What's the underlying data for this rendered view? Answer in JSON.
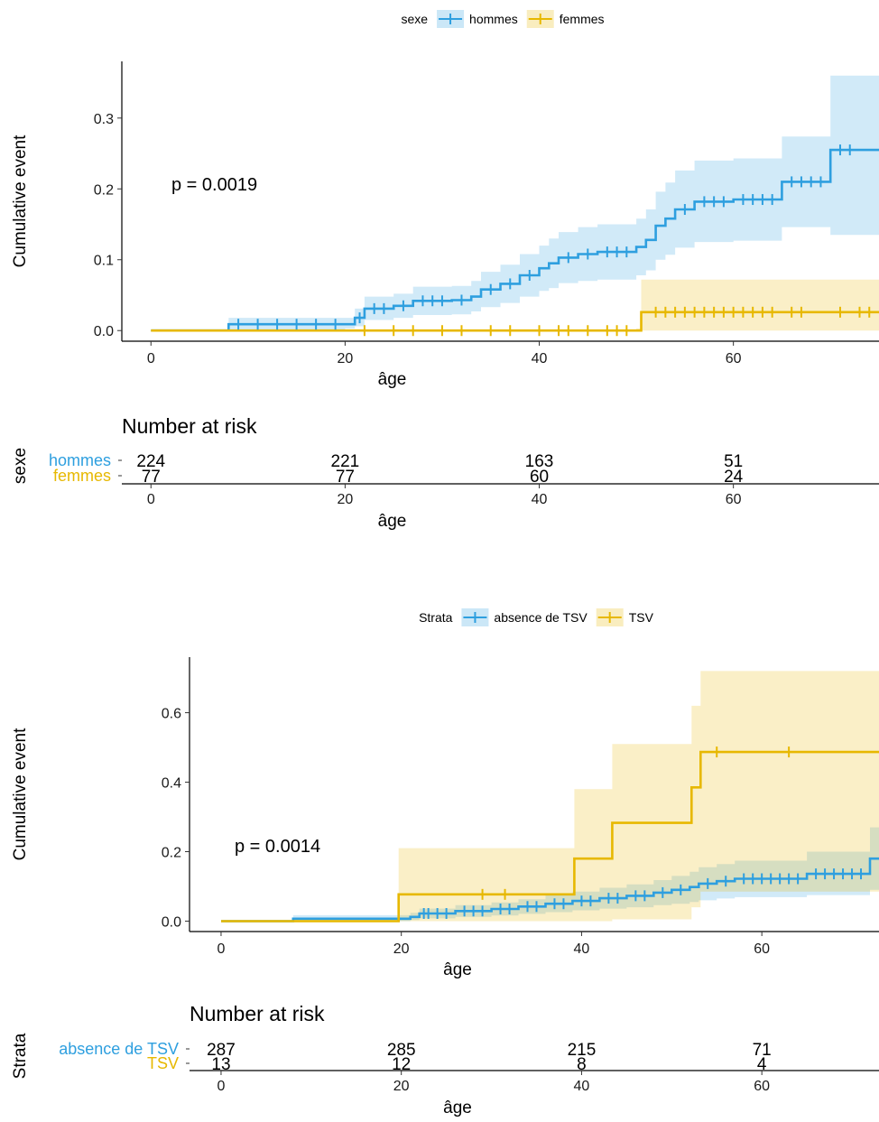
{
  "chart_data": [
    {
      "type": "line",
      "subtype": "cumulative-incidence step plot with confidence bands and censor marks",
      "legend": {
        "title": "sexe",
        "position": "top"
      },
      "xlabel": "âge",
      "ylabel": "Cumulative event",
      "xlim": [
        -3,
        75
      ],
      "ylim": [
        -0.015,
        0.38
      ],
      "x_ticks": [
        0,
        20,
        40,
        60
      ],
      "y_ticks": [
        0.0,
        0.1,
        0.2,
        0.3
      ],
      "y_tick_labels": [
        "0.0",
        "0.1",
        "0.2",
        "0.3"
      ],
      "p_value": "p = 0.0019",
      "series": [
        {
          "name": "hommes",
          "color": "#2E9FDF",
          "steps": [
            [
              0,
              0
            ],
            [
              8,
              0.009
            ],
            [
              20,
              0.009
            ],
            [
              21,
              0.018
            ],
            [
              22,
              0.031
            ],
            [
              25,
              0.035
            ],
            [
              27,
              0.042
            ],
            [
              31,
              0.043
            ],
            [
              33,
              0.048
            ],
            [
              34,
              0.058
            ],
            [
              36,
              0.066
            ],
            [
              38,
              0.078
            ],
            [
              40,
              0.088
            ],
            [
              41,
              0.095
            ],
            [
              42,
              0.103
            ],
            [
              44,
              0.108
            ],
            [
              46,
              0.111
            ],
            [
              50,
              0.118
            ],
            [
              51,
              0.128
            ],
            [
              52,
              0.148
            ],
            [
              53,
              0.158
            ],
            [
              54,
              0.171
            ],
            [
              56,
              0.182
            ],
            [
              60,
              0.185
            ],
            [
              65,
              0.21
            ],
            [
              70,
              0.255
            ],
            [
              75,
              0.255
            ]
          ],
          "band": [
            [
              0,
              0,
              0
            ],
            [
              8,
              0,
              0.018
            ],
            [
              20,
              0.003,
              0.018
            ],
            [
              21,
              0.006,
              0.031
            ],
            [
              22,
              0.015,
              0.048
            ],
            [
              25,
              0.018,
              0.052
            ],
            [
              27,
              0.022,
              0.062
            ],
            [
              31,
              0.023,
              0.063
            ],
            [
              33,
              0.027,
              0.07
            ],
            [
              34,
              0.033,
              0.083
            ],
            [
              36,
              0.039,
              0.093
            ],
            [
              38,
              0.048,
              0.108
            ],
            [
              40,
              0.056,
              0.12
            ],
            [
              41,
              0.06,
              0.13
            ],
            [
              42,
              0.067,
              0.139
            ],
            [
              44,
              0.07,
              0.146
            ],
            [
              46,
              0.072,
              0.15
            ],
            [
              50,
              0.078,
              0.158
            ],
            [
              51,
              0.085,
              0.171
            ],
            [
              52,
              0.1,
              0.196
            ],
            [
              53,
              0.107,
              0.209
            ],
            [
              54,
              0.117,
              0.226
            ],
            [
              56,
              0.125,
              0.24
            ],
            [
              60,
              0.127,
              0.243
            ],
            [
              65,
              0.146,
              0.274
            ],
            [
              70,
              0.135,
              0.36
            ],
            [
              75,
              0.135,
              0.36
            ]
          ],
          "censor_x": [
            9,
            11,
            13,
            15,
            17,
            19,
            21.5,
            23,
            24,
            26,
            28,
            29,
            30,
            32,
            35,
            37,
            39,
            43,
            45,
            47,
            48,
            49,
            55,
            57,
            58,
            59,
            61,
            62,
            63,
            64,
            66,
            67,
            68,
            69,
            71,
            72
          ]
        },
        {
          "name": "femmes",
          "color": "#E7B800",
          "steps": [
            [
              0,
              0
            ],
            [
              50,
              0
            ],
            [
              50.5,
              0.026
            ],
            [
              75,
              0.026
            ]
          ],
          "band": [
            [
              0,
              0,
              0
            ],
            [
              50,
              0,
              0.003
            ],
            [
              50.5,
              0,
              0.072
            ],
            [
              75,
              0,
              0.072
            ]
          ],
          "censor_x": [
            22,
            25,
            27,
            30,
            32,
            35,
            37,
            40,
            42,
            43,
            45,
            47,
            48,
            49,
            52,
            53,
            54,
            55,
            56,
            57,
            58,
            59,
            60,
            61,
            62,
            63,
            64,
            66,
            67,
            71,
            73,
            74
          ]
        }
      ],
      "risk_table": {
        "title": "Number at risk",
        "ylabel": "sexe",
        "xlabel": "âge",
        "x_ticks": [
          0,
          20,
          40,
          60
        ],
        "time_points": [
          0,
          20,
          40,
          60
        ],
        "rows": [
          {
            "name": "hommes",
            "color": "#2E9FDF",
            "counts": [
              "224",
              "221",
              "163",
              "51"
            ]
          },
          {
            "name": "femmes",
            "color": "#E7B800",
            "counts": [
              "77",
              "77",
              "60",
              "24"
            ]
          }
        ]
      }
    },
    {
      "type": "line",
      "subtype": "cumulative-incidence step plot with confidence bands and censor marks",
      "legend": {
        "title": "Strata",
        "position": "top"
      },
      "xlabel": "âge",
      "ylabel": "Cumulative event",
      "xlim": [
        -3.5,
        73
      ],
      "ylim": [
        -0.03,
        0.76
      ],
      "x_ticks": [
        0,
        20,
        40,
        60
      ],
      "y_ticks": [
        0.0,
        0.2,
        0.4,
        0.6
      ],
      "y_tick_labels": [
        "0.0",
        "0.2",
        "0.4",
        "0.6"
      ],
      "p_value": "p = 0.0014",
      "series": [
        {
          "name": "absence de TSV",
          "color": "#2E9FDF",
          "steps": [
            [
              0,
              0
            ],
            [
              8,
              0.007
            ],
            [
              21,
              0.012
            ],
            [
              22,
              0.022
            ],
            [
              26,
              0.029
            ],
            [
              30,
              0.035
            ],
            [
              33,
              0.042
            ],
            [
              36,
              0.05
            ],
            [
              39,
              0.058
            ],
            [
              42,
              0.066
            ],
            [
              45,
              0.073
            ],
            [
              48,
              0.082
            ],
            [
              50,
              0.09
            ],
            [
              52,
              0.098
            ],
            [
              53,
              0.108
            ],
            [
              55,
              0.115
            ],
            [
              57,
              0.122
            ],
            [
              65,
              0.136
            ],
            [
              72,
              0.18
            ],
            [
              73,
              0.18
            ]
          ],
          "band": [
            [
              0,
              0,
              0
            ],
            [
              8,
              0,
              0.017
            ],
            [
              21,
              0.003,
              0.024
            ],
            [
              22,
              0.008,
              0.036
            ],
            [
              26,
              0.012,
              0.046
            ],
            [
              30,
              0.016,
              0.054
            ],
            [
              33,
              0.021,
              0.063
            ],
            [
              36,
              0.026,
              0.074
            ],
            [
              39,
              0.031,
              0.085
            ],
            [
              42,
              0.036,
              0.096
            ],
            [
              45,
              0.04,
              0.106
            ],
            [
              48,
              0.046,
              0.118
            ],
            [
              50,
              0.05,
              0.13
            ],
            [
              52,
              0.055,
              0.142
            ],
            [
              53,
              0.06,
              0.155
            ],
            [
              55,
              0.065,
              0.164
            ],
            [
              57,
              0.069,
              0.174
            ],
            [
              65,
              0.075,
              0.2
            ],
            [
              72,
              0.09,
              0.27
            ],
            [
              73,
              0.09,
              0.27
            ]
          ],
          "censor_x": [
            22.5,
            23,
            24,
            25,
            27,
            28,
            29,
            31,
            32,
            34,
            35,
            37,
            38,
            40,
            41,
            43,
            44,
            46,
            47,
            49,
            51,
            54,
            56,
            58,
            59,
            60,
            61,
            62,
            63,
            64,
            66,
            67,
            68,
            69,
            70,
            71
          ]
        },
        {
          "name": "TSV",
          "color": "#E7B800",
          "steps": [
            [
              0,
              0
            ],
            [
              19.5,
              0
            ],
            [
              19.7,
              0.077
            ],
            [
              39,
              0.077
            ],
            [
              39.2,
              0.18
            ],
            [
              43.2,
              0.18
            ],
            [
              43.4,
              0.283
            ],
            [
              52,
              0.283
            ],
            [
              52.2,
              0.385
            ],
            [
              53,
              0.385
            ],
            [
              53.2,
              0.487
            ],
            [
              73,
              0.487
            ]
          ],
          "band": [
            [
              0,
              0,
              0
            ],
            [
              19.5,
              0,
              0.005
            ],
            [
              19.7,
              0,
              0.21
            ],
            [
              39,
              0,
              0.21
            ],
            [
              39.2,
              0,
              0.38
            ],
            [
              43.2,
              0,
              0.38
            ],
            [
              43.4,
              0.005,
              0.51
            ],
            [
              52,
              0.005,
              0.51
            ],
            [
              52.2,
              0.04,
              0.62
            ],
            [
              53,
              0.04,
              0.62
            ],
            [
              53.2,
              0.085,
              0.72
            ],
            [
              73,
              0.085,
              0.72
            ]
          ],
          "censor_x": [
            29,
            31.5,
            55,
            63
          ]
        }
      ],
      "risk_table": {
        "title": "Number at risk",
        "ylabel": "Strata",
        "xlabel": "âge",
        "x_ticks": [
          0,
          20,
          40,
          60
        ],
        "time_points": [
          0,
          20,
          40,
          60
        ],
        "rows": [
          {
            "name": "absence de TSV",
            "color": "#2E9FDF",
            "counts": [
              "287",
              "285",
              "215",
              "71"
            ]
          },
          {
            "name": "TSV",
            "color": "#E7B800",
            "counts": [
              "13",
              "12",
              "8",
              "4"
            ]
          }
        ]
      }
    }
  ]
}
